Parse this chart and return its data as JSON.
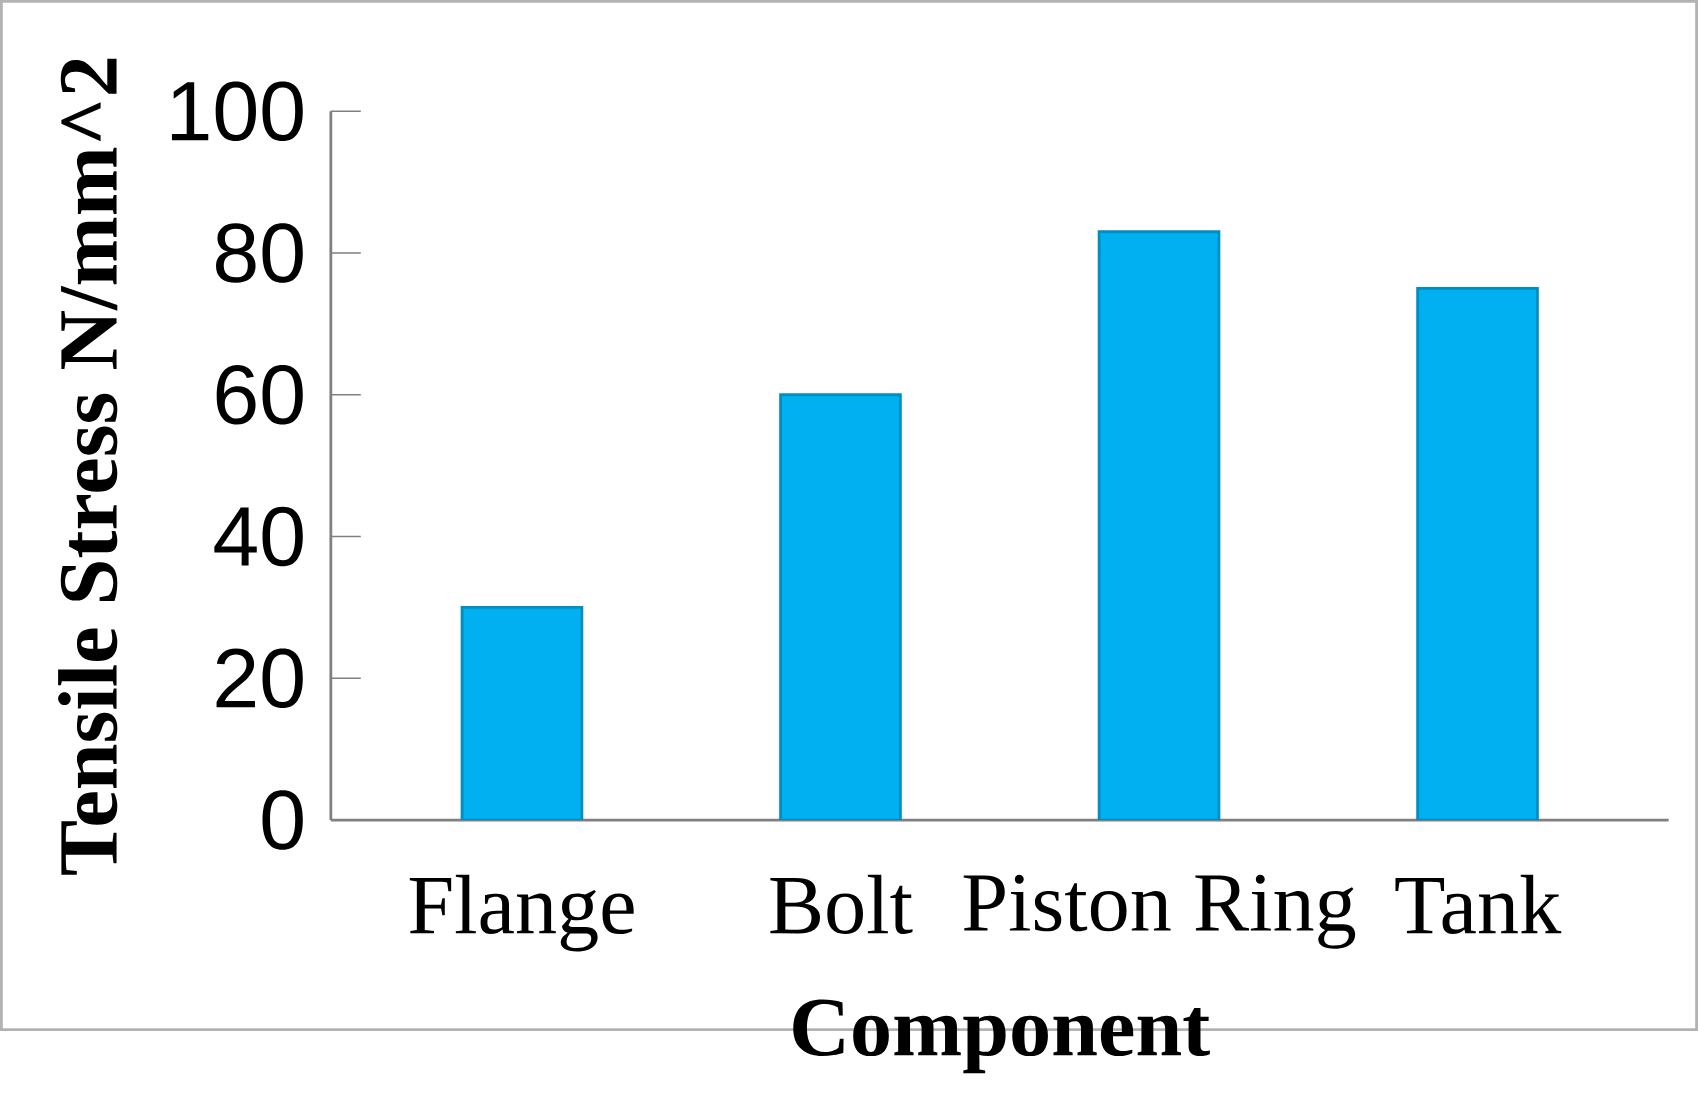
{
  "chart_data": {
    "type": "bar",
    "xlabel": "Component",
    "ylabel": "Tensile Stress N/mm^2",
    "categories": [
      "Flange",
      "Bolt",
      "Piston Ring",
      "Tank"
    ],
    "values": [
      30,
      60,
      83,
      75
    ],
    "color": "#00b0f0",
    "ylim": [
      0,
      100
    ],
    "yticks": [
      0,
      20,
      40,
      60,
      80,
      100
    ],
    "grid": false
  }
}
